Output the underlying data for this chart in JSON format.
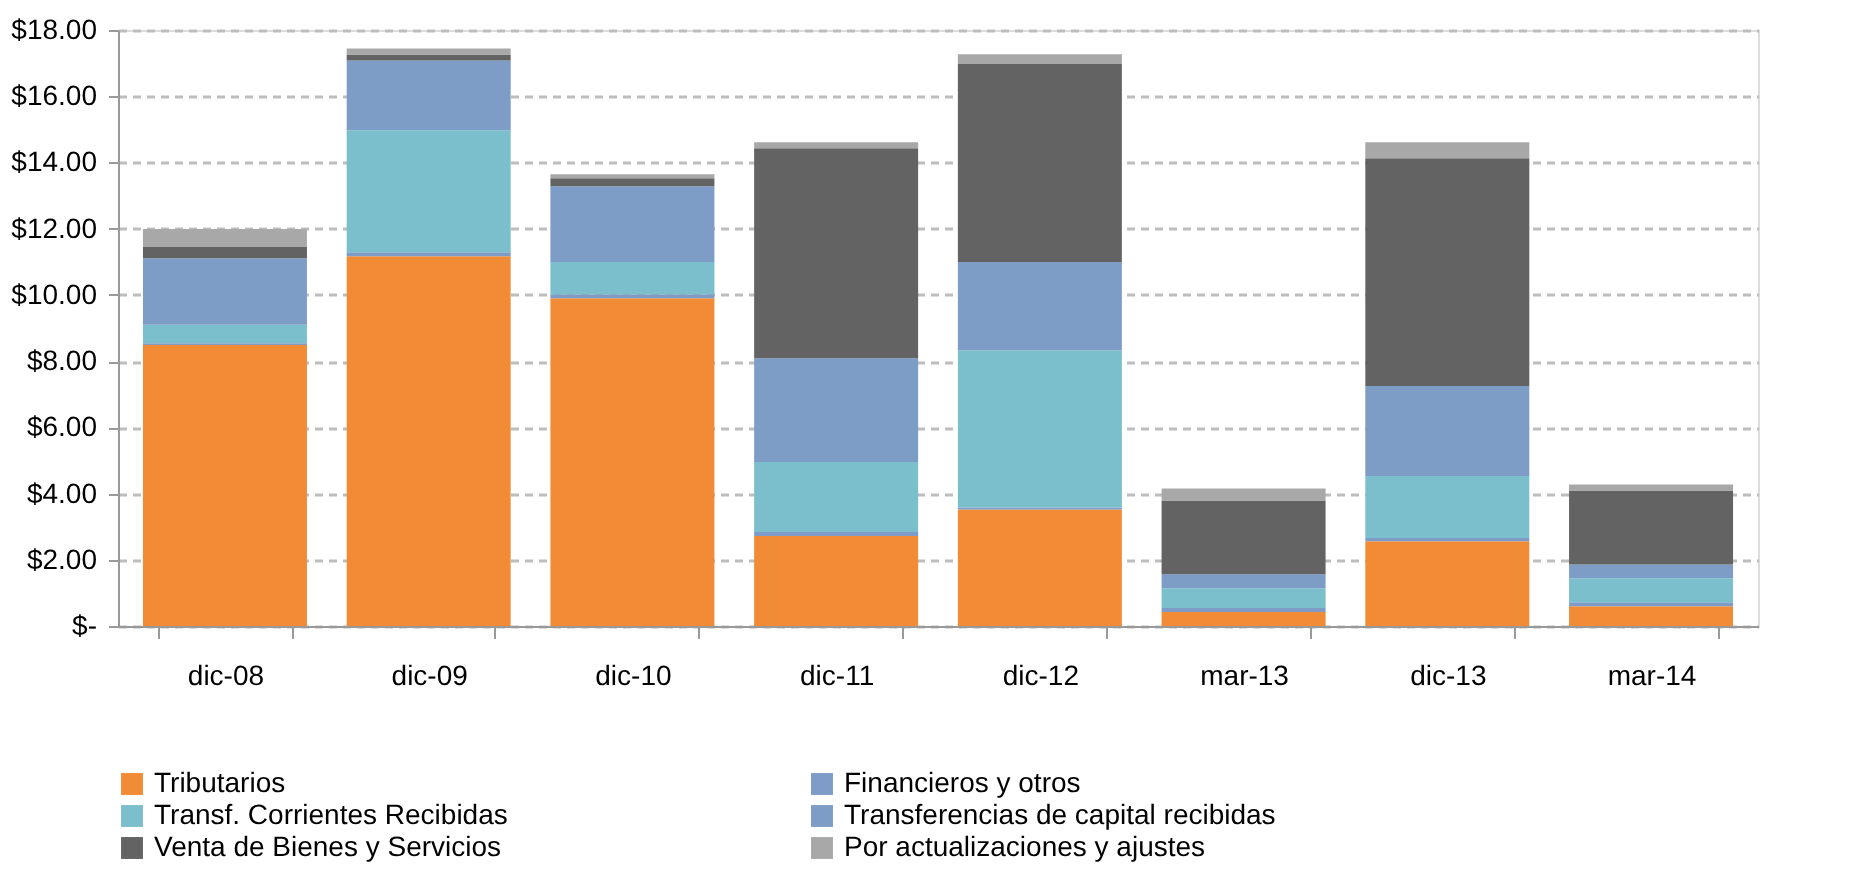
{
  "chart_data": {
    "type": "bar",
    "stacked": true,
    "categories": [
      "dic-08",
      "dic-09",
      "dic-10",
      "dic-11",
      "dic-12",
      "mar-13",
      "dic-13",
      "mar-14"
    ],
    "series": [
      {
        "name": "Tributarios",
        "color": "#f28b35",
        "values": [
          8.49,
          11.17,
          9.9,
          2.72,
          3.52,
          0.42,
          2.56,
          0.6
        ]
      },
      {
        "name": "Financieros y otros",
        "color": "#7f9cc8",
        "values": [
          0.05,
          0.12,
          0.12,
          0.12,
          0.06,
          0.12,
          0.1,
          0.12
        ]
      },
      {
        "name": "Transf. Corrientes Recibidas",
        "color": "#7bbfcc",
        "values": [
          0.56,
          3.68,
          0.97,
          2.11,
          4.75,
          0.6,
          1.87,
          0.72
        ]
      },
      {
        "name": "Transferencias de capital recibidas",
        "color": "#7d9cc6",
        "values": [
          2.01,
          2.11,
          2.29,
          3.14,
          2.66,
          0.42,
          2.72,
          0.42
        ]
      },
      {
        "name": "Venta de Bienes y Servicios",
        "color": "#636363",
        "values": [
          0.34,
          0.18,
          0.24,
          6.34,
          5.98,
          2.23,
          6.88,
          2.23
        ]
      },
      {
        "name": "Por actualizaciones y ajustes",
        "color": "#a8a8a8",
        "values": [
          0.54,
          0.18,
          0.12,
          0.18,
          0.3,
          0.36,
          0.48,
          0.18
        ]
      }
    ],
    "ylim": [
      0,
      18
    ],
    "yticks": [
      {
        "value": 0,
        "label": "$-"
      },
      {
        "value": 2,
        "label": "$2.00"
      },
      {
        "value": 4,
        "label": "$4.00"
      },
      {
        "value": 6,
        "label": "$6.00"
      },
      {
        "value": 8,
        "label": "$8.00"
      },
      {
        "value": 10,
        "label": "$10.00"
      },
      {
        "value": 12,
        "label": "$12.00"
      },
      {
        "value": 14,
        "label": "$14.00"
      },
      {
        "value": 16,
        "label": "$16.00"
      },
      {
        "value": 18,
        "label": "$18.00"
      }
    ],
    "grid": "y",
    "legend": "bottom"
  }
}
